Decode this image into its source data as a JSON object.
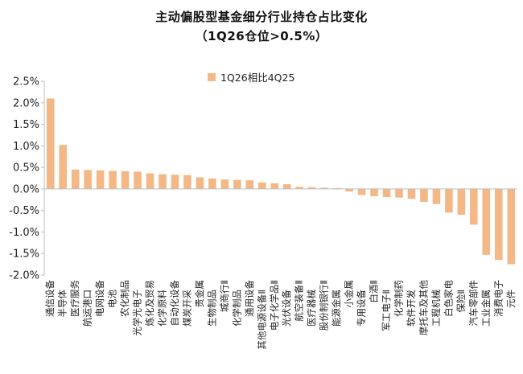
{
  "title": "主动偏股型基金细分行业持仓占比变化",
  "subtitle": "（1Q26仓位>0.5%）",
  "colors": {
    "bar": "#f4b887",
    "axis": "#bfbfbf",
    "text": "#222222"
  },
  "chart_data": {
    "type": "bar",
    "title": "主动偏股型基金细分行业持仓占比变化",
    "subtitle": "（1Q26仓位>0.5%）",
    "legend_position": "top-center",
    "grid": false,
    "ylim": [
      -2.0,
      2.5
    ],
    "yticks": [
      "2.5%",
      "2.0%",
      "1.5%",
      "1.0%",
      "0.5%",
      "0.0%",
      "-0.5%",
      "-1.0%",
      "-1.5%",
      "-2.0%"
    ],
    "ytick_values": [
      2.5,
      2.0,
      1.5,
      1.0,
      0.5,
      0.0,
      -0.5,
      -1.0,
      -1.5,
      -2.0
    ],
    "categories": [
      "通信设备",
      "半导体",
      "医疗服务",
      "航运港口",
      "电网设备",
      "电池",
      "农化制品",
      "光学光电子",
      "炼化及贸易",
      "化学原料",
      "自动化设备",
      "煤炭开采",
      "贵金属",
      "生物制品",
      "城商行Ⅱ",
      "化学制品",
      "通用设备",
      "其他电源设备Ⅱ",
      "电子化学品Ⅱ",
      "光伏设备",
      "航空装备Ⅱ",
      "医疗器械",
      "股份制银行Ⅱ",
      "能源金属",
      "小金属",
      "专用设备",
      "白酒Ⅱ",
      "军工电子Ⅱ",
      "化学制药",
      "软件开发",
      "摩托车及其他",
      "工程机械",
      "白色家电",
      "保险Ⅱ",
      "汽车零部件",
      "工业金属",
      "消费电子",
      "元件"
    ],
    "series": [
      {
        "name": "1Q26相比4Q25",
        "values": [
          2.1,
          1.02,
          0.45,
          0.44,
          0.43,
          0.42,
          0.41,
          0.4,
          0.36,
          0.34,
          0.33,
          0.32,
          0.27,
          0.24,
          0.22,
          0.21,
          0.2,
          0.15,
          0.13,
          0.11,
          0.05,
          0.04,
          0.03,
          0.02,
          -0.06,
          -0.14,
          -0.17,
          -0.19,
          -0.2,
          -0.23,
          -0.3,
          -0.35,
          -0.55,
          -0.6,
          -0.83,
          -1.53,
          -1.65,
          -1.75
        ]
      }
    ]
  }
}
